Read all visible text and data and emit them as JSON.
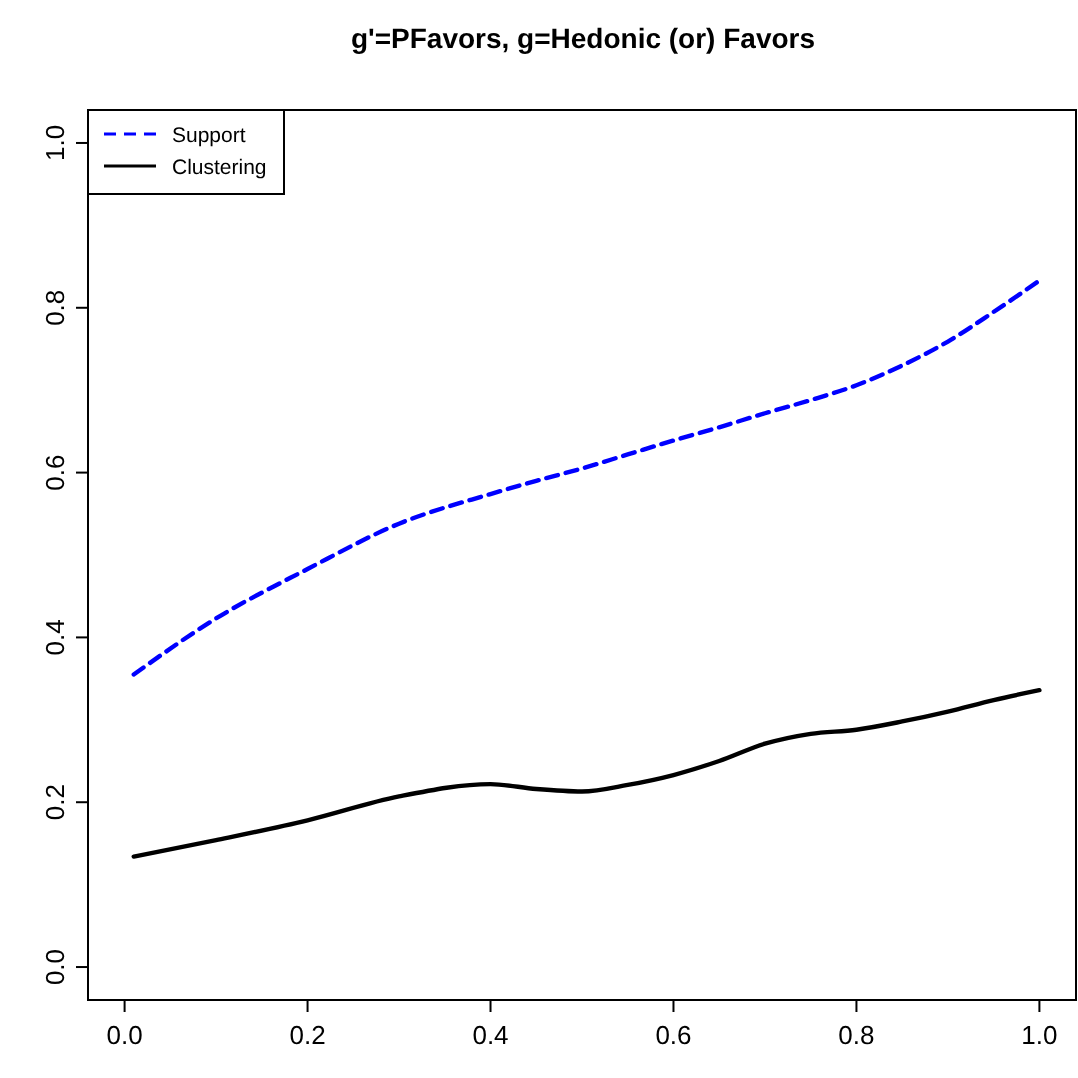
{
  "chart_data": {
    "type": "line",
    "title": "g'=PFavors, g=Hedonic (or) Favors",
    "x": [
      0.01,
      0.1,
      0.2,
      0.3,
      0.4,
      0.45,
      0.5,
      0.55,
      0.6,
      0.65,
      0.7,
      0.75,
      0.8,
      0.85,
      0.9,
      0.95,
      1.0
    ],
    "series": [
      {
        "name": "Support",
        "color": "#0000ff",
        "line_style": "dashed",
        "values": [
          0.355,
          0.423,
          0.483,
          0.538,
          0.574,
          0.59,
          0.605,
          0.622,
          0.639,
          0.655,
          0.672,
          0.688,
          0.706,
          0.73,
          0.759,
          0.795,
          0.833
        ]
      },
      {
        "name": "Clustering",
        "color": "#000000",
        "line_style": "solid",
        "values": [
          0.134,
          0.154,
          0.178,
          0.207,
          0.222,
          0.216,
          0.213,
          0.221,
          0.233,
          0.25,
          0.271,
          0.283,
          0.288,
          0.298,
          0.31,
          0.324,
          0.336
        ]
      }
    ],
    "xlim": [
      -0.04,
      1.04
    ],
    "ylim": [
      -0.04,
      1.04
    ],
    "xticks": [
      {
        "value": 0,
        "label": "0.0"
      },
      0.2,
      0.4,
      0.6,
      0.8,
      {
        "value": 1,
        "label": "1.0"
      }
    ],
    "yticks": [
      {
        "value": 0,
        "label": "0.0"
      },
      0.2,
      0.4,
      0.6,
      0.8,
      {
        "value": 1,
        "label": "1.0"
      }
    ],
    "legend": "top left",
    "grid": false
  }
}
